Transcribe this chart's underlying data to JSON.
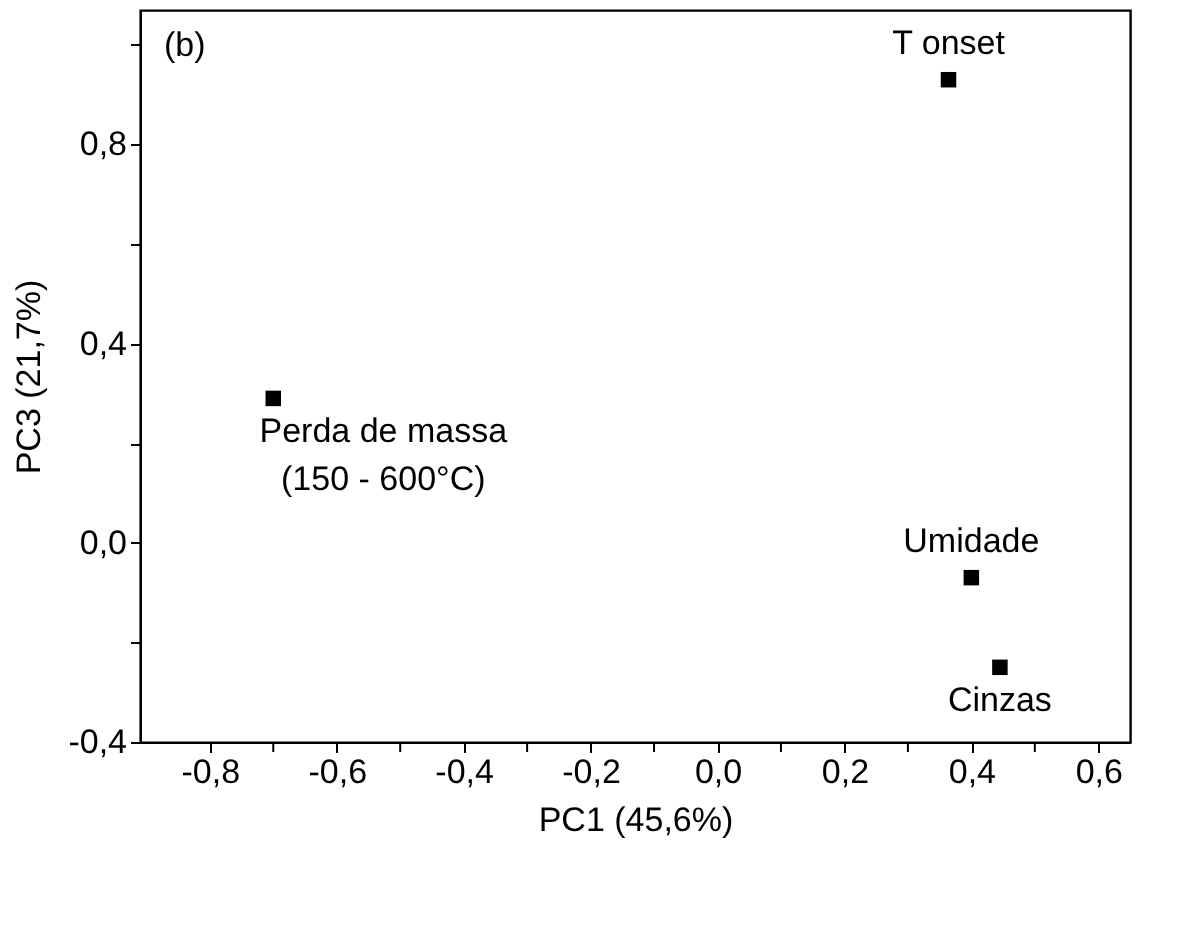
{
  "chart_data": {
    "type": "scatter",
    "xlabel": "PC1 (45,6%)",
    "ylabel": "PC3 (21,7%)",
    "x": [
      -0.7,
      0.364,
      0.4,
      0.445
    ],
    "series": [
      {
        "color": "#000000",
        "values": [
          0.29,
          0.93,
          -0.07,
          -0.25
        ]
      }
    ],
    "marker": "square",
    "xlim": [
      -0.91,
      0.65
    ],
    "ylim": [
      -0.4,
      1.07
    ],
    "xticks": [
      {
        "value": -0.8,
        "label": "-0,8"
      },
      {
        "value": -0.7,
        "label": null
      },
      {
        "value": -0.6,
        "label": "-0,6"
      },
      {
        "value": -0.5,
        "label": null
      },
      {
        "value": -0.4,
        "label": "-0,4"
      },
      {
        "value": -0.3,
        "label": null
      },
      {
        "value": -0.2,
        "label": "-0,2"
      },
      {
        "value": -0.1,
        "label": null
      },
      {
        "value": 0.0,
        "label": "0,0"
      },
      {
        "value": 0.1,
        "label": null
      },
      {
        "value": 0.2,
        "label": "0,2"
      },
      {
        "value": 0.3,
        "label": null
      },
      {
        "value": 0.4,
        "label": "0,4"
      },
      {
        "value": 0.5,
        "label": null
      },
      {
        "value": 0.6,
        "label": "0,6"
      }
    ],
    "yticks": [
      {
        "value": -0.4,
        "label": "-0,4"
      },
      {
        "value": -0.2,
        "label": null
      },
      {
        "value": 0.0,
        "label": "0,0"
      },
      {
        "value": 0.2,
        "label": null
      },
      {
        "value": 0.4,
        "label": "0,4"
      },
      {
        "value": 0.6,
        "label": null
      },
      {
        "value": 0.8,
        "label": "0,8"
      },
      {
        "value": 1.0,
        "label": null
      }
    ],
    "grid": false,
    "annotations": [
      "(b)",
      {
        "text": "Perda de massa\n(150 - 600°C)",
        "x": -0.7,
        "y": 0.29
      },
      {
        "text": "T onset",
        "x": 0.364,
        "y": 0.93
      },
      {
        "text": "Umidade",
        "x": 0.4,
        "y": -0.07
      },
      {
        "text": "Cinzas",
        "x": 0.445,
        "y": -0.25
      }
    ]
  }
}
